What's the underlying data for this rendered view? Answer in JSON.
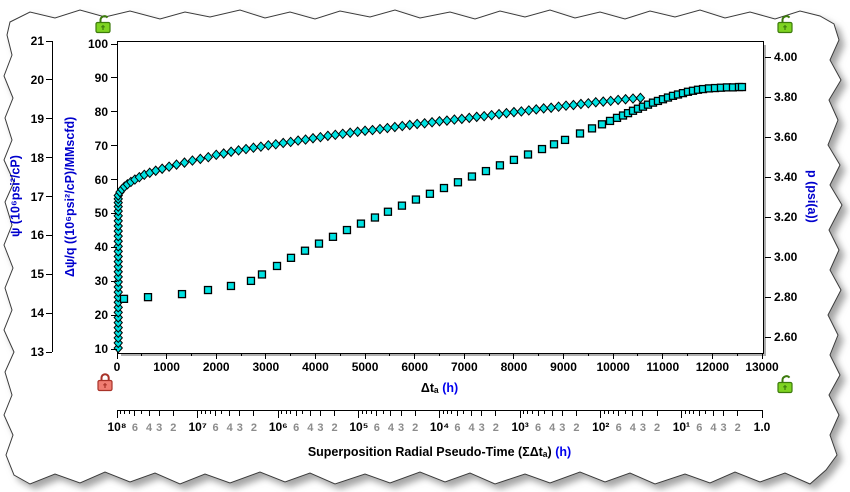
{
  "locks": {
    "top_left": {
      "state": "unlocked",
      "body_color": "#7ed321",
      "border_color": "#3c7a0c"
    },
    "top_right": {
      "state": "unlocked",
      "body_color": "#7ed321",
      "border_color": "#3c7a0c"
    },
    "bottom_left": {
      "state": "locked",
      "body_color": "#ef7d72",
      "border_color": "#a83228"
    },
    "bottom_right": {
      "state": "unlocked",
      "body_color": "#7ed321",
      "border_color": "#3c7a0c"
    }
  },
  "axes": {
    "psi": {
      "label": "ψ (10⁶psi²/cP)",
      "color": "#0000cd",
      "ticks": [
        "21",
        "20",
        "19",
        "18",
        "17",
        "16",
        "15",
        "14",
        "13"
      ],
      "min": 13,
      "max": 21
    },
    "dpsi_q": {
      "label": "Δψ/q ((10⁶psi²/cP)/MMscfd)",
      "color": "#0000cd",
      "ticks": [
        "100",
        "90",
        "80",
        "70",
        "60",
        "50",
        "40",
        "30",
        "20",
        "10"
      ],
      "min": 10,
      "max": 100
    },
    "p": {
      "label": "p (psi(a))",
      "color": "#0000cd",
      "ticks": [
        "4.00",
        "3.80",
        "3.60",
        "3.40",
        "3.20",
        "3.00",
        "2.80",
        "2.60"
      ],
      "min": 2.6,
      "max": 4.0
    },
    "dta": {
      "label": "Δtₐ",
      "unit": "(h)",
      "unit_color": "#0000ee",
      "ticks": [
        "0",
        "1000",
        "2000",
        "3000",
        "4000",
        "5000",
        "6000",
        "7000",
        "8000",
        "9000",
        "10000",
        "11000",
        "12000",
        "13000"
      ],
      "min": 0,
      "max": 13000
    },
    "superposition": {
      "label": "Superposition Radial Pseudo-Time (ΣΔtₐ)",
      "unit": "(h)",
      "unit_color": "#0000ee",
      "decades": [
        "10⁸",
        "10⁷",
        "10⁶",
        "10⁵",
        "10⁴",
        "10³",
        "10²",
        "10¹"
      ],
      "end_label": "1.0",
      "minor_labels": [
        6,
        4,
        3,
        2
      ],
      "direction": "descending-log"
    }
  },
  "chart_data": {
    "type": "scatter",
    "title": "",
    "xlabel": "Δtₐ (h)",
    "x2label": "Superposition Radial Pseudo-Time (ΣΔtₐ) (h)",
    "xlim": [
      0,
      13000
    ],
    "ylim_dpsi_q": [
      10,
      100
    ],
    "ylim_psi": [
      13,
      21
    ],
    "ylim_p": [
      2.6,
      4.0
    ],
    "grid": false,
    "series": [
      {
        "name": "normalized-pseudo-pressure-diamonds",
        "marker": "diamond",
        "fill": "#00e2e2",
        "stroke": "#000000",
        "x_axis": "dta",
        "y_axis": "dpsi_q",
        "points": [
          [
            25,
            10.3
          ],
          [
            25,
            11.8
          ],
          [
            25,
            13.3
          ],
          [
            25,
            14.8
          ],
          [
            25,
            16.3
          ],
          [
            25,
            17.8
          ],
          [
            25,
            19.3
          ],
          [
            25,
            20.8
          ],
          [
            25,
            22.3
          ],
          [
            25,
            23.8
          ],
          [
            25,
            25.3
          ],
          [
            25,
            26.8
          ],
          [
            25,
            28.3
          ],
          [
            25,
            29.8
          ],
          [
            25,
            31.3
          ],
          [
            25,
            32.8
          ],
          [
            25,
            34.3
          ],
          [
            25,
            35.8
          ],
          [
            25,
            37.3
          ],
          [
            25,
            38.8
          ],
          [
            25,
            40.3
          ],
          [
            25,
            41.8
          ],
          [
            25,
            43.3
          ],
          [
            25,
            44.8
          ],
          [
            25,
            46.3
          ],
          [
            25,
            47.8
          ],
          [
            25,
            49.3
          ],
          [
            25,
            50.7
          ],
          [
            25,
            52.0
          ],
          [
            25,
            53.2
          ],
          [
            25,
            54.3
          ],
          [
            25,
            55.3
          ],
          [
            60,
            56.3
          ],
          [
            100,
            57.1
          ],
          [
            150,
            57.9
          ],
          [
            210,
            58.6
          ],
          [
            280,
            59.3
          ],
          [
            360,
            60.0
          ],
          [
            450,
            60.7
          ],
          [
            550,
            61.4
          ],
          [
            660,
            62.0
          ],
          [
            780,
            62.6
          ],
          [
            910,
            63.2
          ],
          [
            1050,
            63.8
          ],
          [
            1200,
            64.4
          ],
          [
            1360,
            65.0
          ],
          [
            1520,
            65.6
          ],
          [
            1680,
            66.1
          ],
          [
            1840,
            66.6
          ],
          [
            2000,
            67.3
          ],
          [
            2150,
            67.7
          ],
          [
            2300,
            68.2
          ],
          [
            2450,
            68.6
          ],
          [
            2600,
            69.0
          ],
          [
            2750,
            69.4
          ],
          [
            2900,
            69.7
          ],
          [
            3050,
            70.1
          ],
          [
            3200,
            70.4
          ],
          [
            3350,
            70.8
          ],
          [
            3500,
            71.1
          ],
          [
            3650,
            71.5
          ],
          [
            3800,
            71.8
          ],
          [
            3950,
            72.2
          ],
          [
            4100,
            72.5
          ],
          [
            4250,
            72.9
          ],
          [
            4400,
            73.2
          ],
          [
            4550,
            73.5
          ],
          [
            4700,
            73.8
          ],
          [
            4850,
            74.1
          ],
          [
            5000,
            74.4
          ],
          [
            5150,
            74.6
          ],
          [
            5300,
            74.9
          ],
          [
            5450,
            75.2
          ],
          [
            5600,
            75.5
          ],
          [
            5750,
            75.8
          ],
          [
            5900,
            76.1
          ],
          [
            6050,
            76.4
          ],
          [
            6200,
            76.6
          ],
          [
            6350,
            76.9
          ],
          [
            6500,
            77.2
          ],
          [
            6650,
            77.4
          ],
          [
            6800,
            77.7
          ],
          [
            6950,
            77.9
          ],
          [
            7100,
            78.2
          ],
          [
            7250,
            78.5
          ],
          [
            7400,
            78.7
          ],
          [
            7550,
            79.0
          ],
          [
            7700,
            79.3
          ],
          [
            7850,
            79.6
          ],
          [
            8000,
            79.9
          ],
          [
            8150,
            80.1
          ],
          [
            8300,
            80.4
          ],
          [
            8450,
            80.7
          ],
          [
            8600,
            81.0
          ],
          [
            8750,
            81.2
          ],
          [
            8900,
            81.5
          ],
          [
            9050,
            81.8
          ],
          [
            9200,
            82.0
          ],
          [
            9350,
            82.3
          ],
          [
            9500,
            82.5
          ],
          [
            9650,
            82.8
          ],
          [
            9800,
            83.0
          ],
          [
            9950,
            83.2
          ],
          [
            10100,
            83.5
          ],
          [
            10250,
            83.7
          ],
          [
            10400,
            83.9
          ],
          [
            10550,
            84.1
          ]
        ]
      },
      {
        "name": "pressure-squares",
        "marker": "square",
        "fill": "#00e2e2",
        "stroke": "#000000",
        "x_axis": "dta",
        "y_axis": "dpsi_q",
        "points": [
          [
            141,
            24.8
          ],
          [
            625,
            25.3
          ],
          [
            1310,
            26.2
          ],
          [
            1834,
            27.4
          ],
          [
            2297,
            28.6
          ],
          [
            2700,
            30.1
          ],
          [
            2922,
            32.0
          ],
          [
            3225,
            34.5
          ],
          [
            3507,
            36.9
          ],
          [
            3789,
            39.0
          ],
          [
            4071,
            41.1
          ],
          [
            4353,
            43.1
          ],
          [
            4635,
            45.1
          ],
          [
            4917,
            47.0
          ],
          [
            5199,
            48.8
          ],
          [
            5461,
            50.5
          ],
          [
            5743,
            52.3
          ],
          [
            6025,
            54.1
          ],
          [
            6307,
            55.8
          ],
          [
            6590,
            57.5
          ],
          [
            6872,
            59.2
          ],
          [
            7154,
            60.9
          ],
          [
            7436,
            62.5
          ],
          [
            7718,
            64.2
          ],
          [
            8000,
            65.8
          ],
          [
            8284,
            67.4
          ],
          [
            8566,
            69.0
          ],
          [
            8808,
            70.4
          ],
          [
            9030,
            71.7
          ],
          [
            9332,
            73.6
          ],
          [
            9574,
            75.1
          ],
          [
            9775,
            76.3
          ],
          [
            9937,
            77.3
          ],
          [
            10078,
            78.2
          ],
          [
            10199,
            78.9
          ],
          [
            10300,
            79.6
          ],
          [
            10400,
            80.3
          ],
          [
            10500,
            80.9
          ],
          [
            10601,
            81.5
          ],
          [
            10702,
            82.1
          ],
          [
            10803,
            82.7
          ],
          [
            10903,
            83.2
          ],
          [
            11004,
            83.7
          ],
          [
            11105,
            84.2
          ],
          [
            11206,
            84.7
          ],
          [
            11307,
            85.1
          ],
          [
            11407,
            85.5
          ],
          [
            11508,
            85.9
          ],
          [
            11609,
            86.2
          ],
          [
            11710,
            86.5
          ],
          [
            11811,
            86.7
          ],
          [
            11931,
            86.9
          ],
          [
            12052,
            87.0
          ],
          [
            12173,
            87.1
          ],
          [
            12294,
            87.2
          ],
          [
            12415,
            87.2
          ],
          [
            12536,
            87.3
          ],
          [
            12596,
            87.3
          ]
        ]
      }
    ]
  }
}
